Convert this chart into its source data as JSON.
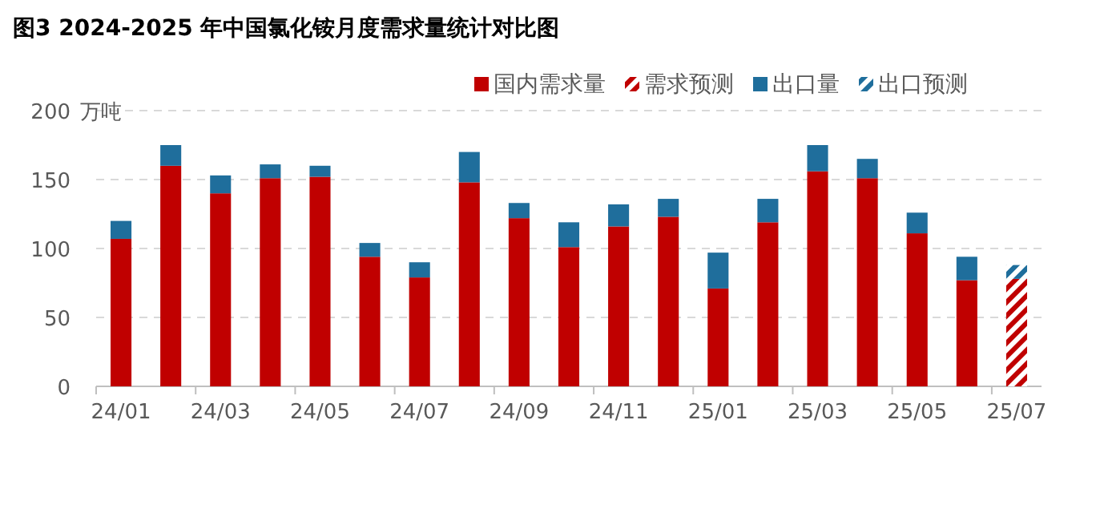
{
  "chart_data": {
    "type": "bar",
    "title": "图3 2024-2025 年中国氯化铵月度需求量统计对比图",
    "ylabel": "万吨",
    "categories": [
      "24/01",
      null,
      "24/03",
      null,
      "24/05",
      null,
      "24/07",
      null,
      "24/09",
      null,
      "24/11",
      null,
      "25/01",
      null,
      "25/03",
      null,
      "25/05",
      null,
      "25/07"
    ],
    "stacked": true,
    "series": [
      {
        "name": "国内需求量",
        "color": "#c00000",
        "values": [
          107,
          160,
          140,
          151,
          152,
          94,
          79,
          148,
          122,
          101,
          116,
          123,
          71,
          119,
          156,
          151,
          111,
          77,
          null
        ]
      },
      {
        "name": "需求预测",
        "color": "#c00000",
        "values": [
          null,
          null,
          null,
          null,
          null,
          null,
          null,
          null,
          null,
          null,
          null,
          null,
          null,
          null,
          null,
          null,
          null,
          null,
          78
        ]
      },
      {
        "name": "出口量",
        "color": "#1f6e9c",
        "values": [
          13,
          15,
          13,
          10,
          8,
          10,
          11,
          22,
          11,
          18,
          16,
          13,
          26,
          17,
          19,
          14,
          15,
          17,
          null
        ]
      },
      {
        "name": "出口预测",
        "color": "#1f6e9c",
        "values": [
          null,
          null,
          null,
          null,
          null,
          null,
          null,
          null,
          null,
          null,
          null,
          null,
          null,
          null,
          null,
          null,
          null,
          null,
          10
        ]
      }
    ],
    "ylim": [
      0,
      200
    ],
    "yticks": [
      0,
      50,
      100,
      150,
      200
    ],
    "grid": "y",
    "legend": "top right"
  }
}
